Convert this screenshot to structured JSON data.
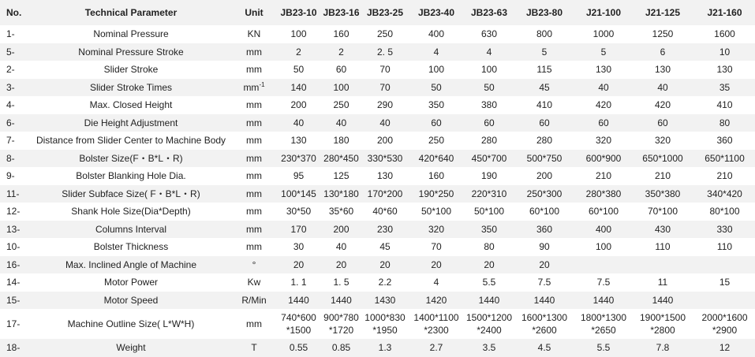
{
  "headers": {
    "no": "No.",
    "param": "Technical Parameter",
    "unit": "Unit",
    "models": [
      "JB23-10",
      "JB23-16",
      "JB23-25",
      "JB23-40",
      "JB23-63",
      "JB23-80",
      "J21-100",
      "J21-125",
      "J21-160"
    ]
  },
  "rows": [
    {
      "no": "1-",
      "param": "Nominal Pressure",
      "unit": "KN",
      "values": [
        "100",
        "160",
        "250",
        "400",
        "630",
        "800",
        "1000",
        "1250",
        "1600"
      ]
    },
    {
      "no": "5-",
      "param": "Nominal Pressure Stroke",
      "unit": "mm",
      "values": [
        "2",
        "2",
        "2. 5",
        "4",
        "4",
        "5",
        "5",
        "6",
        "10"
      ]
    },
    {
      "no": "2-",
      "param": "Slider Stroke",
      "unit": "mm",
      "values": [
        "50",
        "60",
        "70",
        "100",
        "100",
        "115",
        "130",
        "130",
        "130"
      ]
    },
    {
      "no": "3-",
      "param": "Slider Stroke Times",
      "unit": "mm",
      "unit_sup": "-1",
      "values": [
        "140",
        "100",
        "70",
        "50",
        "50",
        "45",
        "40",
        "40",
        "35"
      ]
    },
    {
      "no": "4-",
      "param": "Max. Closed Height",
      "unit": "mm",
      "values": [
        "200",
        "250",
        "290",
        "350",
        "380",
        "410",
        "420",
        "420",
        "410"
      ]
    },
    {
      "no": "6-",
      "param": "Die Height Adjustment",
      "unit": "mm",
      "values": [
        "40",
        "40",
        "40",
        "60",
        "60",
        "60",
        "60",
        "60",
        "80"
      ]
    },
    {
      "no": "7-",
      "param": "Distance from Slider Center to Machine Body",
      "unit": "mm",
      "values": [
        "130",
        "180",
        "200",
        "250",
        "280",
        "280",
        "320",
        "320",
        "360"
      ]
    },
    {
      "no": "8-",
      "param": "Bolster Size(F・B*L・R)",
      "unit": "mm",
      "values": [
        "230*370",
        "280*450",
        "330*530",
        "420*640",
        "450*700",
        "500*750",
        "600*900",
        "650*1000",
        "650*1100"
      ]
    },
    {
      "no": "9-",
      "param": "Bolster Blanking Hole Dia.",
      "unit": "mm",
      "values": [
        "95",
        "125",
        "130",
        "160",
        "190",
        "200",
        "210",
        "210",
        "210"
      ]
    },
    {
      "no": "11-",
      "param": "Slider Subface Size( F・B*L・R)",
      "unit": "mm",
      "values": [
        "100*145",
        "130*180",
        "170*200",
        "190*250",
        "220*310",
        "250*300",
        "280*380",
        "350*380",
        "340*420"
      ]
    },
    {
      "no": "12-",
      "param": "Shank Hole Size(Dia*Depth)",
      "unit": "mm",
      "values": [
        "30*50",
        "35*60",
        "40*60",
        "50*100",
        "50*100",
        "60*100",
        "60*100",
        "70*100",
        "80*100"
      ]
    },
    {
      "no": "13-",
      "param": "Columns Interval",
      "unit": "mm",
      "values": [
        "170",
        "200",
        "230",
        "320",
        "350",
        "360",
        "400",
        "430",
        "330"
      ]
    },
    {
      "no": "10-",
      "param": "Bolster Thickness",
      "unit": "mm",
      "values": [
        "30",
        "40",
        "45",
        "70",
        "80",
        "90",
        "100",
        "110",
        "110"
      ]
    },
    {
      "no": "16-",
      "param": "Max. Inclined Angle of Machine",
      "unit": "°",
      "values": [
        "20",
        "20",
        "20",
        "20",
        "20",
        "20",
        "",
        "",
        ""
      ]
    },
    {
      "no": "14-",
      "param": "Motor Power",
      "unit": "Kw",
      "values": [
        "1. 1",
        "1. 5",
        "2.2",
        "4",
        "5.5",
        "7.5",
        "7.5",
        "11",
        "15"
      ]
    },
    {
      "no": "15-",
      "param": "Motor Speed",
      "unit": "R/Min",
      "values": [
        "1440",
        "1440",
        "1430",
        "1420",
        "1440",
        "1440",
        "1440",
        "1440",
        ""
      ]
    },
    {
      "no": "17-",
      "param": "Machine Outline Size( L*W*H)",
      "unit": "mm",
      "values": [
        "740*600\n*1500",
        "900*780\n*1720",
        "1000*830\n*1950",
        "1400*1100\n*2300",
        "1500*1200\n*2400",
        "1600*1300\n*2600",
        "1800*1300\n*2650",
        "1900*1500\n*2800",
        "2000*1600\n*2900"
      ]
    },
    {
      "no": "18-",
      "param": "Weight",
      "unit": "T",
      "values": [
        "0.55",
        "0.85",
        "1.3",
        "2.7",
        "3.5",
        "4.5",
        "5.5",
        "7.8",
        "12"
      ]
    }
  ]
}
